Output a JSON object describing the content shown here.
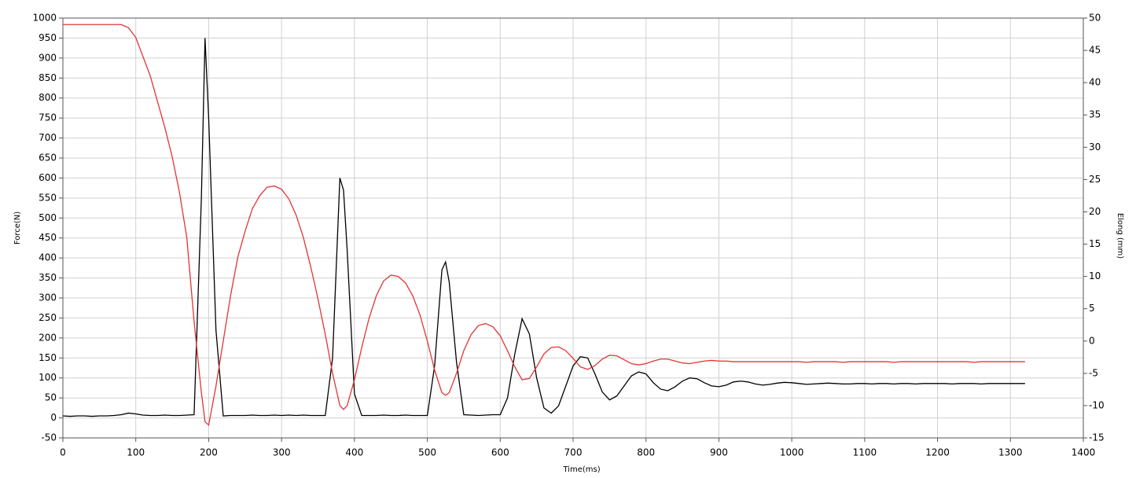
{
  "chart_data": {
    "type": "line",
    "x_label": "Time(ms)",
    "y_label": "Force(N)",
    "y2_label": "Elong (mm)",
    "x": [
      0,
      10,
      20,
      30,
      40,
      50,
      60,
      70,
      80,
      90,
      100,
      110,
      120,
      130,
      140,
      150,
      160,
      170,
      180,
      190,
      195,
      200,
      210,
      220,
      230,
      240,
      250,
      260,
      270,
      280,
      290,
      300,
      310,
      320,
      330,
      340,
      350,
      360,
      370,
      380,
      385,
      390,
      400,
      410,
      420,
      430,
      440,
      450,
      460,
      470,
      480,
      490,
      500,
      510,
      520,
      525,
      530,
      540,
      550,
      560,
      570,
      580,
      590,
      600,
      610,
      620,
      630,
      640,
      650,
      660,
      670,
      680,
      690,
      700,
      710,
      720,
      730,
      740,
      750,
      760,
      770,
      780,
      790,
      800,
      810,
      820,
      830,
      840,
      850,
      860,
      870,
      880,
      890,
      900,
      910,
      920,
      930,
      940,
      950,
      960,
      970,
      980,
      990,
      1000,
      1010,
      1020,
      1030,
      1040,
      1050,
      1060,
      1070,
      1080,
      1090,
      1100,
      1110,
      1120,
      1130,
      1140,
      1150,
      1160,
      1170,
      1180,
      1190,
      1200,
      1210,
      1220,
      1230,
      1240,
      1250,
      1260,
      1270,
      1280,
      1290,
      1300,
      1310,
      1320
    ],
    "series": [
      {
        "color": "#000000",
        "values": [
          5,
          4,
          5,
          5,
          4,
          5,
          5,
          6,
          8,
          12,
          10,
          7,
          6,
          6,
          7,
          6,
          6,
          7,
          8,
          550,
          950,
          750,
          220,
          5,
          6,
          6,
          6,
          7,
          6,
          6,
          7,
          6,
          7,
          6,
          7,
          6,
          6,
          6,
          150,
          600,
          570,
          420,
          60,
          6,
          6,
          6,
          7,
          6,
          6,
          7,
          6,
          6,
          6,
          130,
          370,
          390,
          340,
          140,
          8,
          7,
          6,
          7,
          8,
          8,
          50,
          160,
          248,
          210,
          100,
          25,
          12,
          30,
          80,
          130,
          153,
          150,
          110,
          65,
          45,
          55,
          80,
          105,
          115,
          110,
          88,
          72,
          68,
          78,
          92,
          100,
          98,
          88,
          80,
          78,
          82,
          90,
          92,
          90,
          85,
          82,
          84,
          87,
          89,
          88,
          86,
          84,
          85,
          86,
          87,
          86,
          85,
          85,
          86,
          86,
          85,
          86,
          86,
          85,
          86,
          86,
          85,
          86,
          86,
          86,
          86,
          85,
          86,
          86,
          86,
          85,
          86,
          86,
          86,
          86,
          86,
          86
        ]
      },
      {
        "color": "#e03535",
        "axis": "y2",
        "values": [
          49,
          49,
          49,
          49,
          49,
          49,
          49,
          49,
          49,
          48.5,
          47,
          44,
          41,
          37,
          33,
          28.5,
          23,
          16,
          3,
          -8,
          -12.5,
          -13,
          -7,
          0,
          7,
          13,
          17,
          20.5,
          22.5,
          23.8,
          24,
          23.5,
          22,
          19.5,
          16,
          11.5,
          6.5,
          1,
          -5,
          -10,
          -10.6,
          -10,
          -6,
          -1,
          3.5,
          7,
          9.3,
          10.2,
          10,
          9,
          7,
          4,
          0,
          -4.5,
          -8,
          -8.4,
          -8,
          -5,
          -1.5,
          1,
          2.4,
          2.7,
          2.2,
          0.8,
          -1.5,
          -4,
          -6,
          -5.8,
          -4,
          -2,
          -1,
          -0.9,
          -1.5,
          -2.7,
          -4,
          -4.4,
          -3.8,
          -2.8,
          -2.2,
          -2.3,
          -2.9,
          -3.5,
          -3.7,
          -3.5,
          -3.1,
          -2.8,
          -2.8,
          -3.1,
          -3.4,
          -3.5,
          -3.3,
          -3.1,
          -3,
          -3.1,
          -3.1,
          -3.2,
          -3.2,
          -3.2,
          -3.2,
          -3.2,
          -3.2,
          -3.2,
          -3.2,
          -3.2,
          -3.2,
          -3.3,
          -3.2,
          -3.2,
          -3.2,
          -3.2,
          -3.3,
          -3.2,
          -3.2,
          -3.2,
          -3.2,
          -3.2,
          -3.2,
          -3.3,
          -3.2,
          -3.2,
          -3.2,
          -3.2,
          -3.2,
          -3.2,
          -3.2,
          -3.2,
          -3.2,
          -3.2,
          -3.3,
          -3.2,
          -3.2,
          -3.2,
          -3.2,
          -3.2,
          -3.2,
          -3.2
        ]
      }
    ],
    "xlim": [
      0,
      1400
    ],
    "xticks": [
      0,
      100,
      200,
      300,
      400,
      500,
      600,
      700,
      800,
      900,
      1000,
      1100,
      1200,
      1300,
      1400
    ],
    "ylim": [
      -50,
      1000
    ],
    "yticks": [
      -50,
      0,
      50,
      100,
      150,
      200,
      250,
      300,
      350,
      400,
      450,
      500,
      550,
      600,
      650,
      700,
      750,
      800,
      850,
      900,
      950,
      1000
    ],
    "y2lim": [
      -15,
      50
    ],
    "y2ticks": [
      -15,
      -10,
      -5,
      0,
      5,
      10,
      15,
      20,
      25,
      30,
      35,
      40,
      45,
      50
    ],
    "grid": true
  }
}
